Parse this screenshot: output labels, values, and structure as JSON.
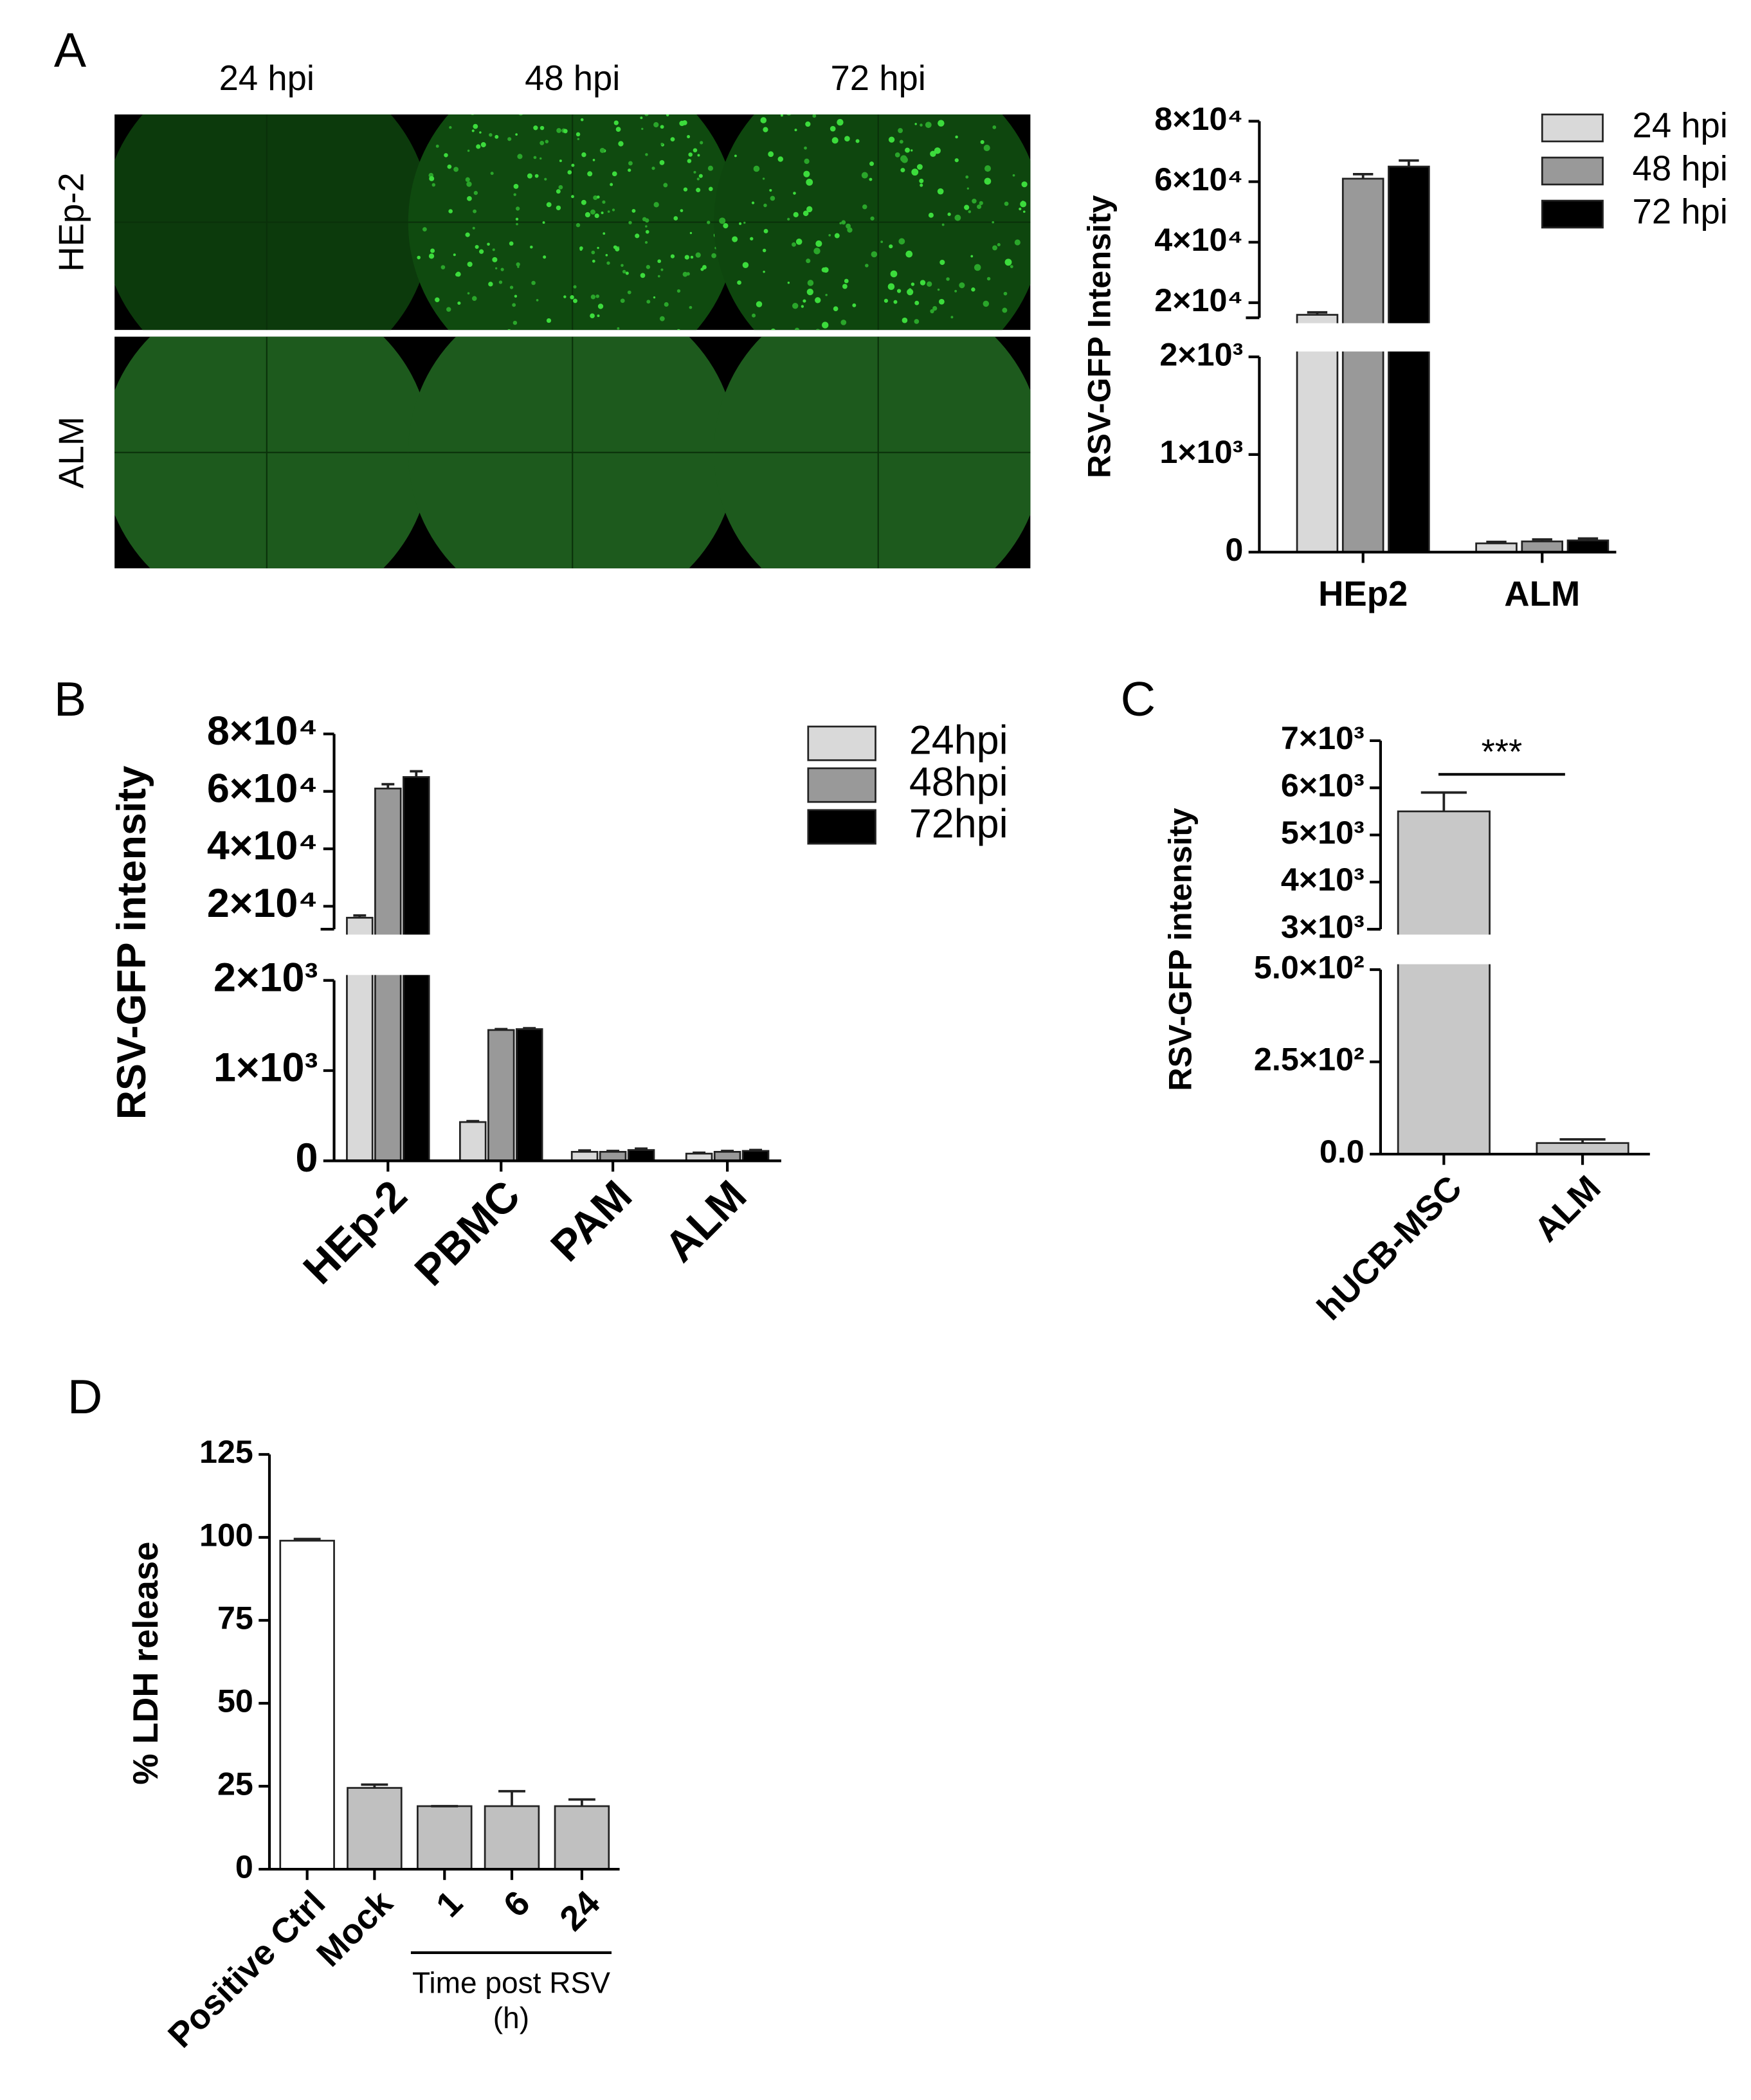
{
  "panel_labels": [
    "A",
    "B",
    "C",
    "D"
  ],
  "micrographs": {
    "columns": [
      "24 hpi",
      "48 hpi",
      "72 hpi"
    ],
    "rows": [
      "HEp-2",
      "ALM"
    ]
  },
  "chart_data": [
    {
      "type": "bar",
      "y_label": "RSV-GFP Intensity",
      "categories": [
        "HEp2",
        "ALM"
      ],
      "series": [
        {
          "name": "24 hpi",
          "color": "#d9d9d9",
          "values": [
            16000,
            90
          ],
          "errors": [
            800,
            15
          ]
        },
        {
          "name": "48 hpi",
          "color": "#999999",
          "values": [
            61000,
            110
          ],
          "errors": [
            1500,
            20
          ]
        },
        {
          "name": "72 hpi",
          "color": "#000000",
          "values": [
            65000,
            120
          ],
          "errors": [
            2000,
            20
          ]
        }
      ],
      "ylim": [
        0,
        80000
      ],
      "ybreak": [
        2000,
        15000
      ],
      "yticks": [
        0,
        {
          "value": 1000,
          "label": "1×10³"
        },
        {
          "value": 2000,
          "label": "2×10³"
        },
        {
          "value": 20000,
          "label": "2×10⁴"
        },
        {
          "value": 40000,
          "label": "4×10⁴"
        },
        {
          "value": 60000,
          "label": "6×10⁴"
        },
        {
          "value": 80000,
          "label": "8×10⁴"
        }
      ],
      "grid": false,
      "legend": "top-right"
    },
    {
      "type": "bar",
      "y_label": "RSV-GFP intensity",
      "categories": [
        "HEp-2",
        "PBMC",
        "PAM",
        "ALM"
      ],
      "series": [
        {
          "name": "24hpi",
          "color": "#d9d9d9",
          "values": [
            16000,
            430,
            100,
            80
          ],
          "errors": [
            800,
            10,
            15,
            10
          ]
        },
        {
          "name": "48hpi",
          "color": "#999999",
          "values": [
            61000,
            1450,
            100,
            100
          ],
          "errors": [
            1500,
            10,
            10,
            10
          ]
        },
        {
          "name": "72hpi",
          "color": "#000000",
          "values": [
            65000,
            1460,
            120,
            110
          ],
          "errors": [
            2000,
            10,
            15,
            10
          ]
        }
      ],
      "ylim": [
        0,
        80000
      ],
      "ybreak": [
        2000,
        12000
      ],
      "yticks": [
        0,
        {
          "value": 1000,
          "label": "1×10³"
        },
        {
          "value": 2000,
          "label": "2×10³"
        },
        {
          "value": 20000,
          "label": "2×10⁴"
        },
        {
          "value": 40000,
          "label": "4×10⁴"
        },
        {
          "value": 60000,
          "label": "6×10⁴"
        },
        {
          "value": 80000,
          "label": "8×10⁴"
        }
      ],
      "grid": false,
      "legend": "top-right"
    },
    {
      "type": "bar",
      "y_label": "RSV-GFP intensity",
      "categories": [
        "hUCB-MSC",
        "ALM"
      ],
      "values": [
        5500,
        30
      ],
      "errors": [
        400,
        10
      ],
      "color": "#c8c8c8",
      "ylim": [
        0,
        7000
      ],
      "ybreak": [
        500,
        3000
      ],
      "yticks": [
        {
          "value": 0,
          "label": "0.0"
        },
        {
          "value": 250,
          "label": "2.5×10²"
        },
        {
          "value": 500,
          "label": "5.0×10²"
        },
        {
          "value": 3000,
          "label": "3×10³"
        },
        {
          "value": 4000,
          "label": "4×10³"
        },
        {
          "value": 5000,
          "label": "5×10³"
        },
        {
          "value": 6000,
          "label": "6×10³"
        },
        {
          "value": 7000,
          "label": "7×10³"
        }
      ],
      "annotation": "***",
      "grid": false
    },
    {
      "type": "bar",
      "y_label": "% LDH release",
      "categories": [
        "Positive Ctrl",
        "Mock",
        "1",
        "6",
        "24"
      ],
      "values": [
        99,
        24.5,
        19,
        19,
        19
      ],
      "errors": [
        0.5,
        1,
        0,
        4.5,
        2
      ],
      "colors": [
        "#ffffff",
        "#c0c0c0",
        "#c0c0c0",
        "#c0c0c0",
        "#c0c0c0"
      ],
      "ylim": [
        0,
        125
      ],
      "yticks": [
        0,
        25,
        50,
        75,
        100,
        125
      ],
      "group_label": [
        "Time post RSV",
        "(h)"
      ],
      "grid": false
    }
  ]
}
